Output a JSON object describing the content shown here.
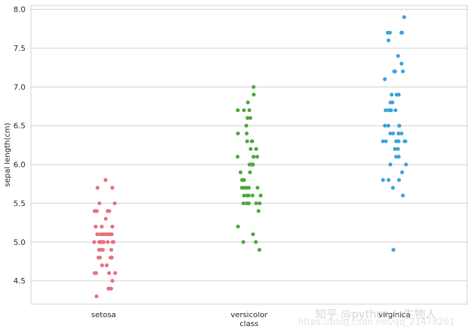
{
  "chart_data": {
    "type": "scatter",
    "subtype": "stripplot",
    "title": "",
    "xlabel": "class",
    "ylabel": "sepal length(cm)",
    "categories": [
      "setosa",
      "versicolor",
      "virginica"
    ],
    "ylim": [
      4.2,
      8.05
    ],
    "yticks": [
      "4.5",
      "5.0",
      "5.5",
      "6.0",
      "6.5",
      "7.0",
      "7.5",
      "8.0"
    ],
    "grid": "horizontal",
    "colors": [
      "#e9707e",
      "#4fa83d",
      "#3ba3de"
    ],
    "series": [
      {
        "category": "setosa",
        "values": [
          5.1,
          4.9,
          4.7,
          4.6,
          5.0,
          5.4,
          4.6,
          5.0,
          4.4,
          4.9,
          5.4,
          4.8,
          4.8,
          4.3,
          5.8,
          5.7,
          5.4,
          5.1,
          5.7,
          5.1,
          5.4,
          5.1,
          4.6,
          5.1,
          4.8,
          5.0,
          5.0,
          5.2,
          5.2,
          4.7,
          4.8,
          5.4,
          5.2,
          5.5,
          4.9,
          5.0,
          5.5,
          4.9,
          4.4,
          5.1,
          5.0,
          4.5,
          4.4,
          5.0,
          5.1,
          4.8,
          5.1,
          4.6,
          5.3,
          5.0
        ]
      },
      {
        "category": "versicolor",
        "values": [
          7.0,
          6.4,
          6.9,
          5.5,
          6.5,
          5.7,
          6.3,
          4.9,
          6.6,
          5.2,
          5.0,
          5.9,
          6.0,
          6.1,
          5.6,
          6.7,
          5.6,
          5.8,
          6.2,
          5.6,
          5.9,
          6.1,
          6.3,
          6.1,
          6.4,
          6.6,
          6.8,
          6.7,
          6.0,
          5.7,
          5.5,
          5.5,
          5.8,
          6.0,
          5.4,
          6.0,
          6.7,
          6.3,
          5.6,
          5.5,
          5.5,
          6.1,
          5.8,
          5.0,
          5.6,
          5.7,
          5.7,
          6.2,
          5.1,
          5.7
        ]
      },
      {
        "category": "virginica",
        "values": [
          6.3,
          5.8,
          7.1,
          6.3,
          6.5,
          7.6,
          4.9,
          7.3,
          6.7,
          7.2,
          6.5,
          6.4,
          6.8,
          5.7,
          5.8,
          6.4,
          6.5,
          7.7,
          7.7,
          6.0,
          6.9,
          5.6,
          7.7,
          6.3,
          6.7,
          7.2,
          6.2,
          6.1,
          6.4,
          7.2,
          7.4,
          7.9,
          6.4,
          6.3,
          6.1,
          7.7,
          6.3,
          6.4,
          6.0,
          6.9,
          6.7,
          6.9,
          5.8,
          6.8,
          6.7,
          6.7,
          6.3,
          6.5,
          6.2,
          5.9
        ]
      }
    ]
  },
  "watermark": {
    "line1": "知乎 @python-ic生物人",
    "line2": "https://blog.csdn.net/qq_21478261"
  }
}
